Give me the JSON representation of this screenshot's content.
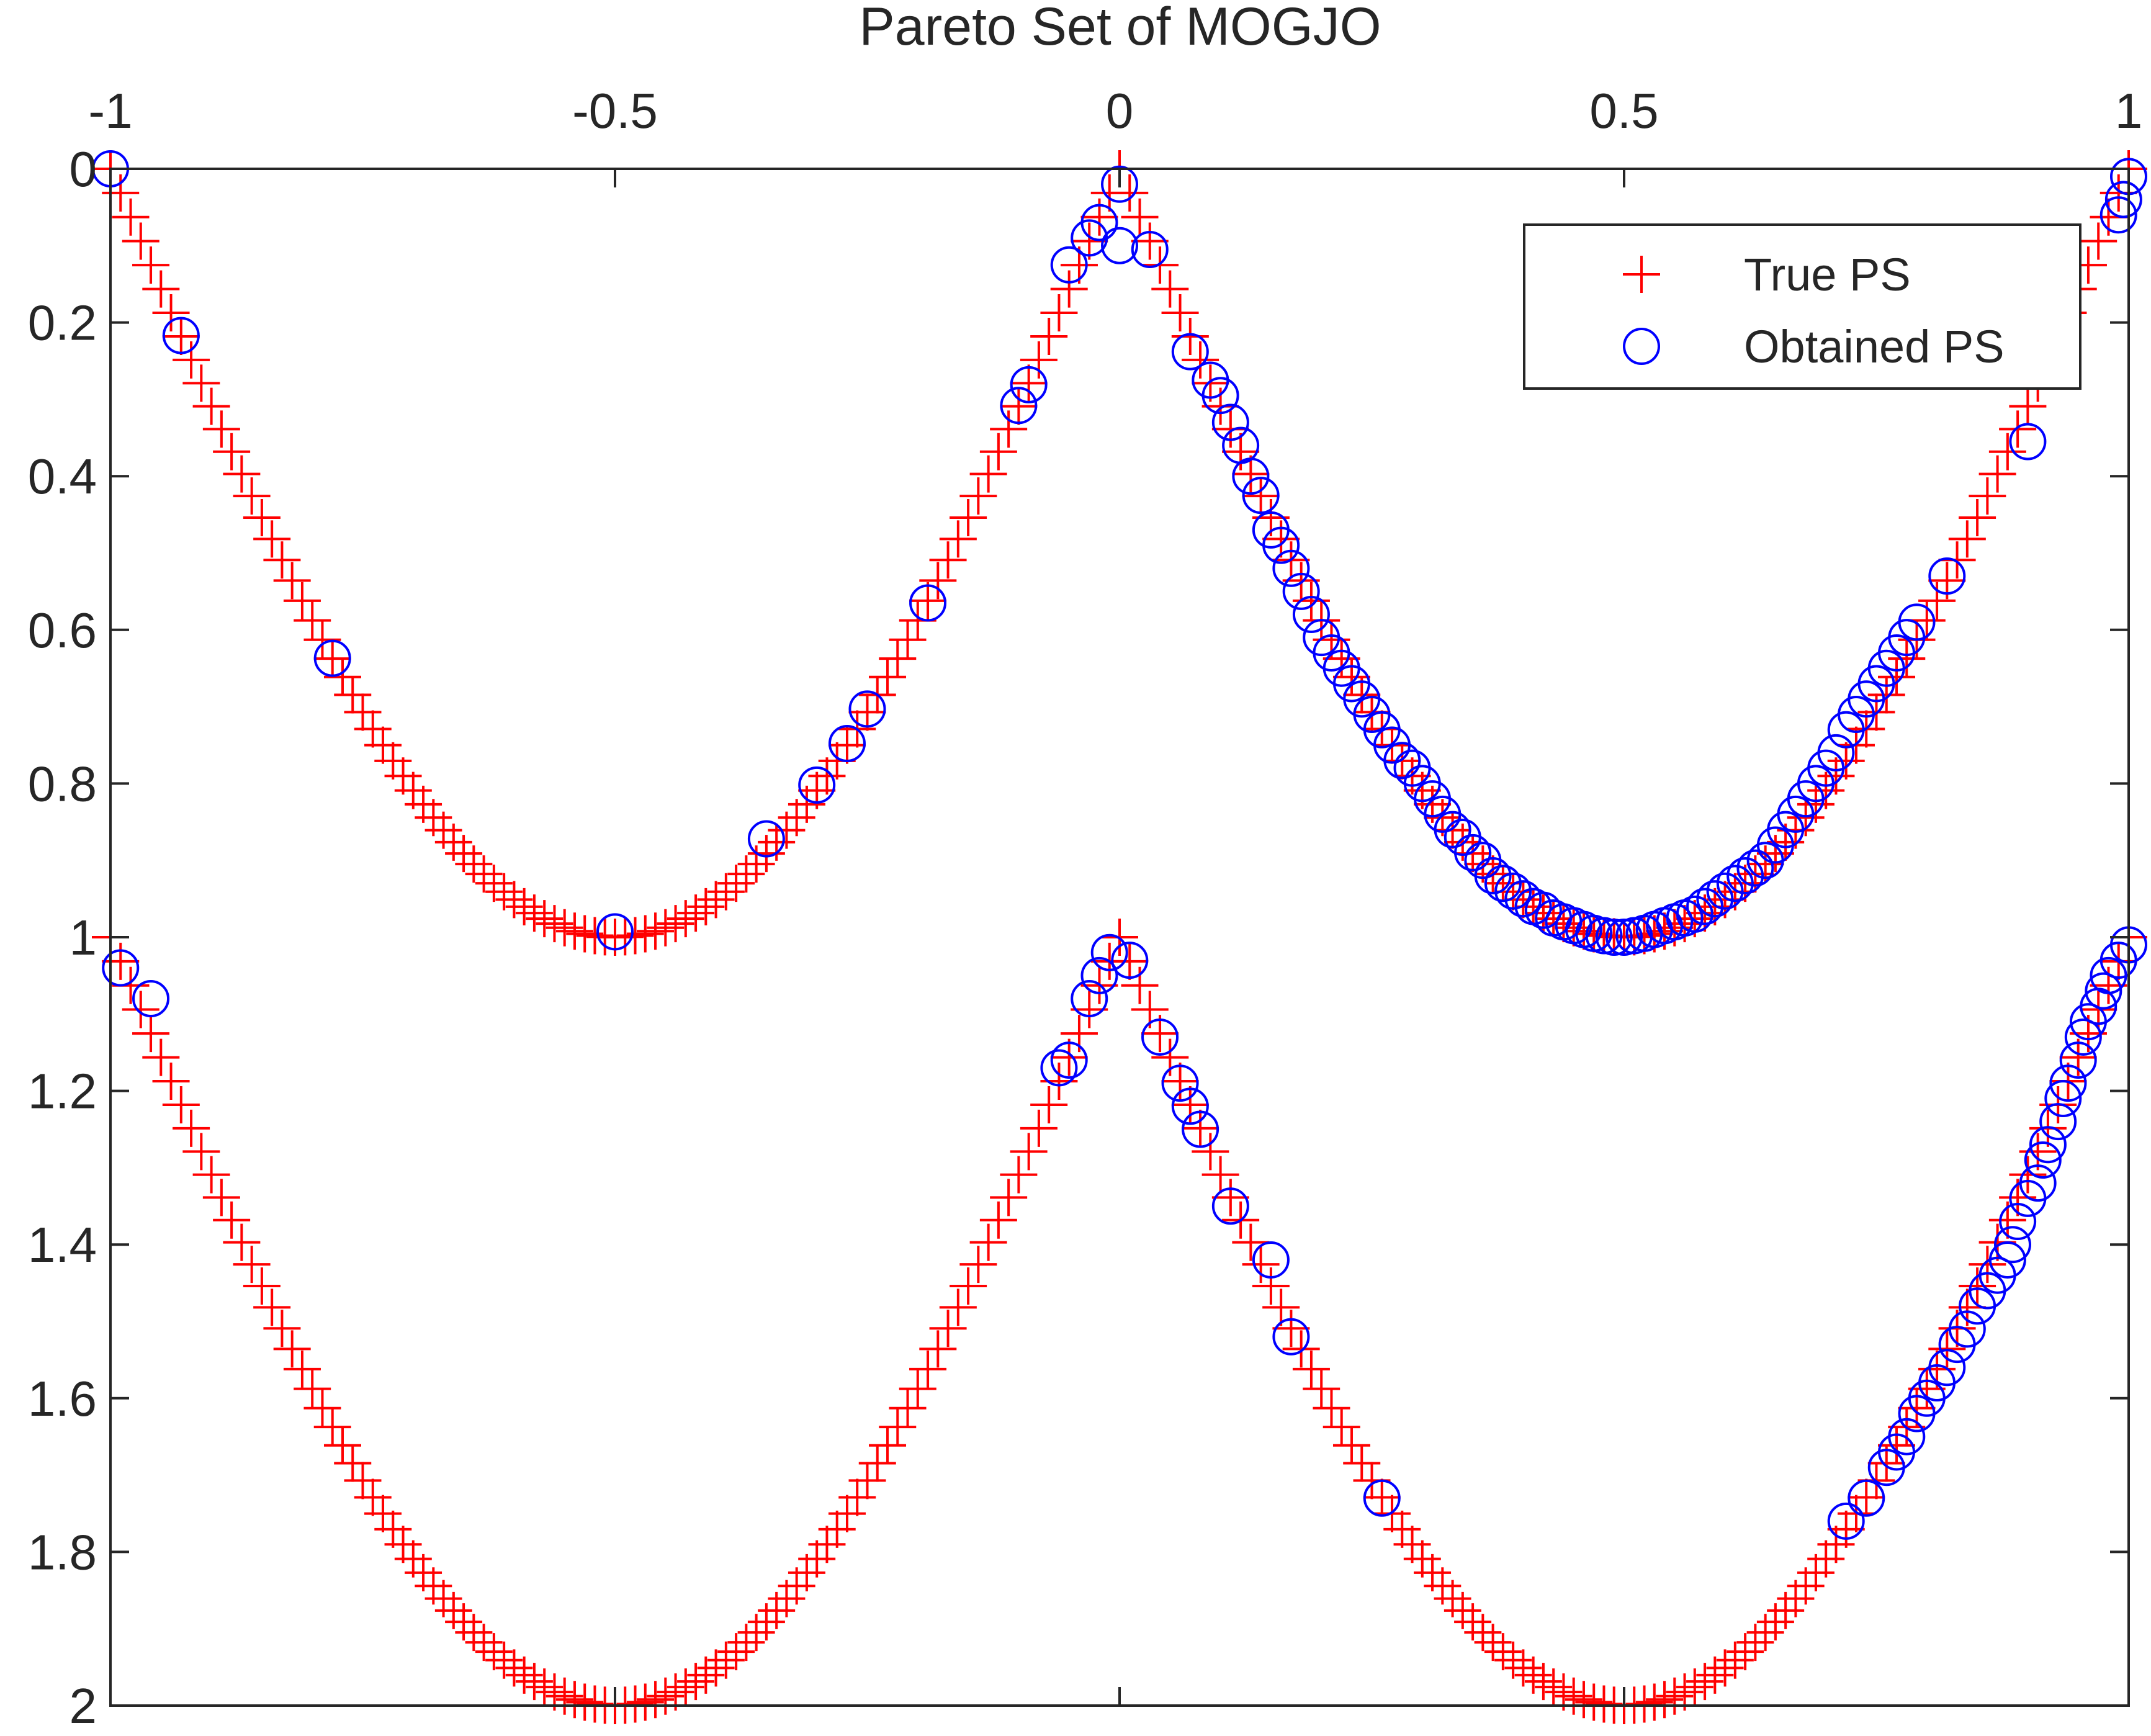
{
  "chart_data": {
    "type": "scatter",
    "title": "Pareto Set of MOGJO",
    "xlabel": "",
    "ylabel": "",
    "xlim": [
      -1,
      1
    ],
    "ylim": [
      0,
      2
    ],
    "y_reversed": true,
    "x_axis_location": "top",
    "x_ticks": [
      -1,
      -0.5,
      0,
      0.5,
      1
    ],
    "x_tick_labels": [
      "-1",
      "-0.5",
      "0",
      "0.5",
      "1"
    ],
    "y_ticks": [
      0,
      0.2,
      0.4,
      0.6,
      0.8,
      1,
      1.2,
      1.4,
      1.6,
      1.8,
      2
    ],
    "y_tick_labels": [
      "0",
      "0.2",
      "0.4",
      "0.6",
      "0.8",
      "1",
      "1.2",
      "1.4",
      "1.6",
      "1.8",
      "2"
    ],
    "grid": false,
    "legend": {
      "position": "top-right"
    },
    "series": [
      {
        "name": "True PS",
        "marker": "plus",
        "color": "#ff0000",
        "curves": [
          {
            "x_start": -1,
            "x_end": 1,
            "step": 0.01,
            "y_formula": "abs(sin(pi*x))"
          },
          {
            "x_start": -1,
            "x_end": 1,
            "step": 0.01,
            "y_formula": "1 + abs(sin(pi*x))"
          }
        ]
      },
      {
        "name": "Obtained PS",
        "marker": "circle",
        "color": "#0000ff",
        "points": [
          [
            -1,
            0
          ],
          [
            -0.93,
            0.217
          ],
          [
            -0.78,
            0.637
          ],
          [
            -0.5,
            0.993
          ],
          [
            -0.35,
            0.872
          ],
          [
            -0.3,
            0.802
          ],
          [
            -0.27,
            0.748
          ],
          [
            -0.25,
            0.703
          ],
          [
            -0.19,
            0.565
          ],
          [
            -0.1,
            0.308
          ],
          [
            -0.09,
            0.281
          ],
          [
            -0.05,
            0.125
          ],
          [
            -0.03,
            0.09
          ],
          [
            -0.02,
            0.07
          ],
          [
            0,
            0.02
          ],
          [
            0,
            0.1
          ],
          [
            0.03,
            0.105
          ],
          [
            0.07,
            0.238
          ],
          [
            0.09,
            0.275
          ],
          [
            0.1,
            0.295
          ],
          [
            0.11,
            0.33
          ],
          [
            0.12,
            0.36
          ],
          [
            0.13,
            0.4
          ],
          [
            0.14,
            0.425
          ],
          [
            0.15,
            0.47
          ],
          [
            0.16,
            0.49
          ],
          [
            0.17,
            0.52
          ],
          [
            0.18,
            0.55
          ],
          [
            0.19,
            0.58
          ],
          [
            0.2,
            0.61
          ],
          [
            0.21,
            0.63
          ],
          [
            0.22,
            0.65
          ],
          [
            0.23,
            0.67
          ],
          [
            0.24,
            0.69
          ],
          [
            0.25,
            0.71
          ],
          [
            0.26,
            0.73
          ],
          [
            0.27,
            0.75
          ],
          [
            0.28,
            0.77
          ],
          [
            0.29,
            0.78
          ],
          [
            0.3,
            0.8
          ],
          [
            0.31,
            0.82
          ],
          [
            0.32,
            0.84
          ],
          [
            0.33,
            0.86
          ],
          [
            0.34,
            0.87
          ],
          [
            0.35,
            0.89
          ],
          [
            0.36,
            0.9
          ],
          [
            0.37,
            0.92
          ],
          [
            0.38,
            0.93
          ],
          [
            0.39,
            0.94
          ],
          [
            0.4,
            0.95
          ],
          [
            0.41,
            0.96
          ],
          [
            0.42,
            0.965
          ],
          [
            0.43,
            0.975
          ],
          [
            0.44,
            0.98
          ],
          [
            0.45,
            0.985
          ],
          [
            0.46,
            0.99
          ],
          [
            0.47,
            0.995
          ],
          [
            0.48,
            0.998
          ],
          [
            0.49,
            1.0
          ],
          [
            0.5,
            1.0
          ],
          [
            0.51,
            0.998
          ],
          [
            0.52,
            0.995
          ],
          [
            0.53,
            0.99
          ],
          [
            0.54,
            0.985
          ],
          [
            0.55,
            0.98
          ],
          [
            0.56,
            0.975
          ],
          [
            0.57,
            0.97
          ],
          [
            0.58,
            0.96
          ],
          [
            0.59,
            0.95
          ],
          [
            0.6,
            0.94
          ],
          [
            0.61,
            0.93
          ],
          [
            0.62,
            0.92
          ],
          [
            0.63,
            0.91
          ],
          [
            0.64,
            0.9
          ],
          [
            0.65,
            0.88
          ],
          [
            0.66,
            0.86
          ],
          [
            0.67,
            0.84
          ],
          [
            0.68,
            0.82
          ],
          [
            0.69,
            0.8
          ],
          [
            0.7,
            0.78
          ],
          [
            0.71,
            0.76
          ],
          [
            0.72,
            0.73
          ],
          [
            0.73,
            0.71
          ],
          [
            0.74,
            0.69
          ],
          [
            0.75,
            0.67
          ],
          [
            0.76,
            0.65
          ],
          [
            0.77,
            0.63
          ],
          [
            0.78,
            0.61
          ],
          [
            0.79,
            0.59
          ],
          [
            0.82,
            0.53
          ],
          [
            0.9,
            0.355
          ],
          [
            0.99,
            0.06
          ],
          [
            0.995,
            0.04
          ],
          [
            1,
            0.01
          ],
          [
            -0.99,
            1.04
          ],
          [
            -0.96,
            1.08
          ],
          [
            -0.05,
            1.16
          ],
          [
            -0.06,
            1.17
          ],
          [
            -0.03,
            1.08
          ],
          [
            -0.02,
            1.05
          ],
          [
            -0.01,
            1.02
          ],
          [
            0.01,
            1.03
          ],
          [
            0.04,
            1.13
          ],
          [
            0.06,
            1.19
          ],
          [
            0.07,
            1.22
          ],
          [
            0.08,
            1.25
          ],
          [
            0.11,
            1.35
          ],
          [
            0.15,
            1.42
          ],
          [
            0.17,
            1.52
          ],
          [
            0.26,
            1.73
          ],
          [
            0.72,
            1.76
          ],
          [
            0.74,
            1.73
          ],
          [
            0.76,
            1.69
          ],
          [
            0.77,
            1.67
          ],
          [
            0.78,
            1.65
          ],
          [
            0.79,
            1.62
          ],
          [
            0.8,
            1.6
          ],
          [
            0.81,
            1.58
          ],
          [
            0.82,
            1.56
          ],
          [
            0.83,
            1.53
          ],
          [
            0.84,
            1.51
          ],
          [
            0.85,
            1.48
          ],
          [
            0.86,
            1.46
          ],
          [
            0.87,
            1.44
          ],
          [
            0.88,
            1.42
          ],
          [
            0.885,
            1.4
          ],
          [
            0.89,
            1.37
          ],
          [
            0.9,
            1.34
          ],
          [
            0.91,
            1.32
          ],
          [
            0.915,
            1.29
          ],
          [
            0.92,
            1.27
          ],
          [
            0.93,
            1.24
          ],
          [
            0.935,
            1.21
          ],
          [
            0.94,
            1.19
          ],
          [
            0.95,
            1.16
          ],
          [
            0.955,
            1.13
          ],
          [
            0.96,
            1.11
          ],
          [
            0.97,
            1.09
          ],
          [
            0.975,
            1.07
          ],
          [
            0.98,
            1.05
          ],
          [
            0.99,
            1.03
          ],
          [
            1,
            1.01
          ]
        ]
      }
    ]
  }
}
